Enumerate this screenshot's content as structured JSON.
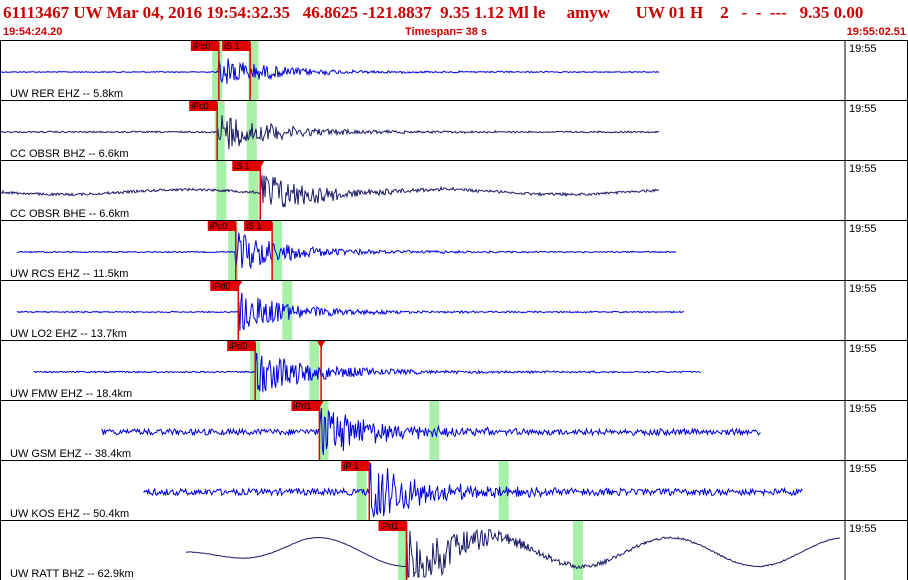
{
  "header": {
    "event_line": "61113467 UW Mar 04, 2016 19:54:32.35   46.8625 -121.8837  9.35 1.12 Ml le     amyw      UW 01 H    2   -  -  ---   9.35 0.00",
    "start_time": "19:54:24.20",
    "timespan": "Timespan=  38 s",
    "end_time": "19:55:02.51"
  },
  "colors": {
    "trace_blue": "#0000dd",
    "trace_dark": "#1a1a66",
    "pick_red": "#e00000",
    "window_green": "#a8f0a8",
    "panel_border": "#000000"
  },
  "tick_label": "19:55",
  "panels": [
    {
      "label": "UW RER EHZ -- 5.8km",
      "color": "blue",
      "amp": 7,
      "noise": 1.0,
      "span": [
        0.0,
        0.78
      ],
      "picks": [
        {
          "text": "iPc0",
          "t": 0.259,
          "mark": false
        },
        {
          "text": "iS 1",
          "t": 0.296,
          "mark": false
        }
      ],
      "greens": [
        0.257,
        0.3
      ]
    },
    {
      "label": "CC OBSR BHZ -- 6.6km",
      "color": "dark",
      "amp": 9,
      "noise": 1.5,
      "span": [
        0.0,
        0.78
      ],
      "picks": [
        {
          "text": "iPc0",
          "t": 0.257,
          "mark": false
        }
      ],
      "greens": [
        0.26,
        0.298
      ]
    },
    {
      "label": "CC OBSR BHE -- 6.6km",
      "color": "dark",
      "amp": 10,
      "noise": 2.5,
      "span": [
        0.0,
        0.78
      ],
      "picks": [
        {
          "text": "iS 1",
          "t": 0.308,
          "mark": true
        }
      ],
      "greens": [
        0.262,
        0.3
      ]
    },
    {
      "label": "UW RCS EHZ -- 11.5km",
      "color": "blue",
      "amp": 9,
      "noise": 1.2,
      "span": [
        0.02,
        0.8
      ],
      "picks": [
        {
          "text": "iPc0",
          "t": 0.279,
          "mark": false
        },
        {
          "text": "iS 1",
          "t": 0.322,
          "mark": false
        }
      ],
      "greens": [
        0.276,
        0.328
      ]
    },
    {
      "label": "UW LO2 EHZ -- 13.7km",
      "color": "blue",
      "amp": 9,
      "noise": 1.2,
      "span": [
        0.02,
        0.81
      ],
      "picks": [
        {
          "text": "iPd0",
          "t": 0.282,
          "mark": true
        }
      ],
      "greens": [
        0.34
      ]
    },
    {
      "label": "UW FMW EHZ -- 18.4km",
      "color": "blue",
      "amp": 11,
      "noise": 1.5,
      "span": [
        0.04,
        0.83
      ],
      "picks": [
        {
          "text": "iPd0",
          "t": 0.302,
          "mark": false
        },
        {
          "text": "",
          "t": 0.38,
          "mark": true
        }
      ],
      "greens": [
        0.302,
        0.372
      ]
    },
    {
      "label": "UW GSM EHZ -- 38.4km",
      "color": "blue",
      "amp": 12,
      "noise": 6.0,
      "span": [
        0.12,
        0.9
      ],
      "picks": [
        {
          "text": "iPd1",
          "t": 0.378,
          "mark": true
        }
      ],
      "greens": [
        0.383,
        0.514
      ]
    },
    {
      "label": "UW KOS EHZ -- 50.4km",
      "color": "blue",
      "amp": 14,
      "noise": 6.5,
      "span": [
        0.17,
        0.95
      ],
      "picks": [
        {
          "text": "iP 1",
          "t": 0.437,
          "mark": false
        }
      ],
      "greens": [
        0.428,
        0.596
      ]
    },
    {
      "label": "UW RATT BHZ -- 62.9km",
      "color": "dark",
      "amp": 16,
      "noise": 0.5,
      "span": [
        0.22,
        1.0
      ],
      "picks": [
        {
          "text": "iPd1",
          "t": 0.481,
          "mark": false
        }
      ],
      "greens": [
        0.477,
        0.684
      ]
    }
  ]
}
